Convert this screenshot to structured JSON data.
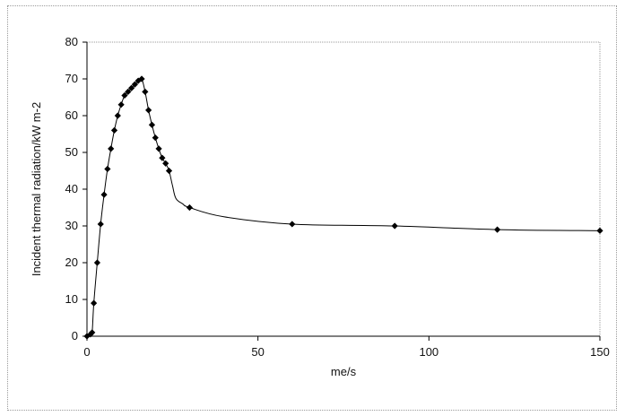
{
  "chart_data": {
    "type": "line",
    "title": "",
    "xlabel": "me/s",
    "ylabel": "Incident thermal radiation/kW m-2",
    "xlim": [
      0,
      150
    ],
    "ylim": [
      0,
      80
    ],
    "xticks": [
      0,
      50,
      100,
      150
    ],
    "yticks": [
      0,
      10,
      20,
      30,
      40,
      50,
      60,
      70,
      80
    ],
    "grid": false,
    "legend": "none",
    "line_color": "#000000",
    "marker_color": "#000000",
    "marker": "diamond",
    "series": [
      {
        "x": [
          0,
          1,
          1.5,
          2,
          3,
          4,
          5,
          6,
          7,
          8,
          9,
          10,
          11,
          12,
          13,
          14,
          15,
          16,
          17,
          18,
          19,
          20,
          21,
          22,
          23,
          24,
          30,
          60,
          90,
          120,
          150
        ],
        "y": [
          0,
          0.5,
          1,
          9,
          20,
          30.5,
          38.5,
          45.5,
          51,
          56,
          60,
          63,
          65.5,
          66.5,
          67.5,
          68.5,
          69.5,
          70,
          66.5,
          61.5,
          57.5,
          54,
          51,
          48.5,
          47,
          45,
          35,
          30.5,
          30,
          29,
          28.7
        ]
      }
    ],
    "curve": {
      "x": [
        0,
        1,
        1.5,
        2,
        3,
        4,
        5,
        6,
        7,
        8,
        9,
        10,
        11,
        12,
        13,
        14,
        15,
        16,
        17,
        18,
        19,
        20,
        21,
        22,
        23,
        24,
        25,
        26,
        28,
        30,
        40,
        60,
        90,
        120,
        150
      ],
      "y": [
        0,
        0.5,
        1,
        9,
        20,
        30.5,
        38.5,
        45.5,
        51,
        56,
        60,
        63,
        65.5,
        66.5,
        67.5,
        68.5,
        69.5,
        70,
        66.5,
        61.5,
        57.5,
        54,
        51,
        48.5,
        47,
        45,
        41,
        37.5,
        36,
        35,
        32.5,
        30.5,
        30,
        29,
        28.7
      ]
    }
  }
}
